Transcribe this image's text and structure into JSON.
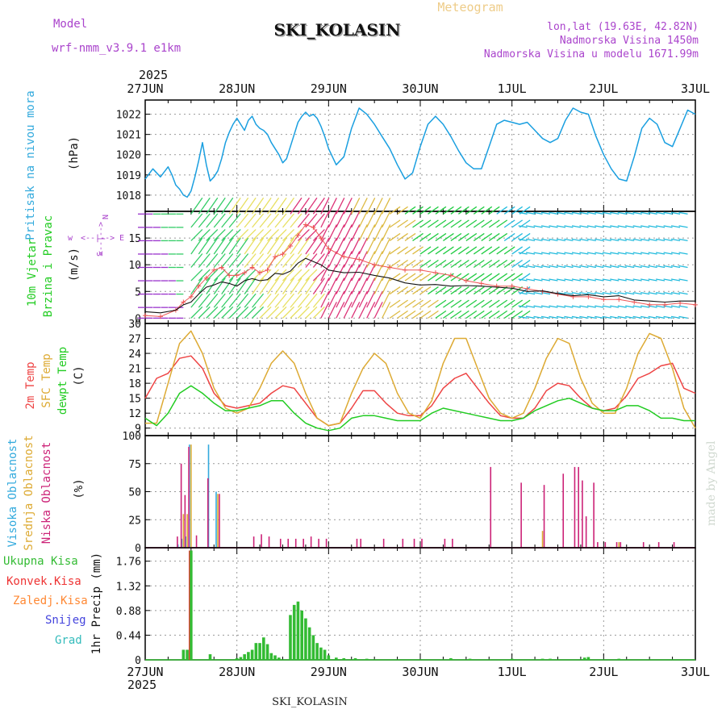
{
  "header": {
    "model_label": "Model",
    "model_name": "wrf-nmm_v3.9.1 e1km",
    "station": "SKI_KOLASIN",
    "meteogram": "Meteogram",
    "lonlat": "lon,lat (19.63E, 42.82N)",
    "elevation": "Nadmorska Visina 1450m",
    "model_elevation": "Nadmorska Visina u modelu 1671.99m",
    "year": "2025",
    "footer_station": "SKI_KOLASIN",
    "credit": "made by Angel"
  },
  "time_axis": {
    "ticks": [
      "27JUN",
      "28JUN",
      "29JUN",
      "30JUN",
      "1JUL",
      "2JUL",
      "3JUL"
    ],
    "range_hours": [
      0,
      144
    ]
  },
  "colors": {
    "pressure": "#1a9fe0",
    "t2m": "#ee4444",
    "sfc": "#ddaa33",
    "dewpt": "#22cc22",
    "high_cloud": "#33aadd",
    "mid_cloud": "#ddaa33",
    "low_cloud": "#cc2277",
    "total_precip": "#33bb33",
    "conv_precip": "#ee3333",
    "freezing": "#ff8833",
    "snow": "#4444dd",
    "hail": "#33bbbb",
    "wind_label": "#22cc22",
    "wind_dir_label": "#aa44cc"
  },
  "chart_data": [
    {
      "type": "line",
      "name": "pressure",
      "ylabel_lines": [
        "Pritisak na nivou mora",
        "(hPa)"
      ],
      "ylim": [
        1017.2,
        1022.7
      ],
      "yticks": [
        1018,
        1019,
        1020,
        1021,
        1022
      ],
      "x": [
        0,
        2,
        4,
        6,
        7,
        8,
        9,
        10,
        11,
        12,
        13,
        14,
        15,
        16,
        17,
        18,
        19,
        20,
        21,
        22,
        23,
        24,
        25,
        26,
        27,
        28,
        29,
        30,
        31,
        32,
        33,
        34,
        35,
        36,
        37,
        38,
        39,
        40,
        41,
        42,
        43,
        44,
        45,
        46,
        47,
        48,
        50,
        52,
        54,
        56,
        58,
        60,
        62,
        64,
        66,
        68,
        70,
        72,
        74,
        76,
        78,
        80,
        82,
        84,
        86,
        88,
        90,
        92,
        94,
        96,
        98,
        100,
        102,
        104,
        106,
        108,
        110,
        112,
        114,
        116,
        118,
        120,
        122,
        124,
        126,
        128,
        130,
        132,
        134,
        136,
        138,
        140,
        142,
        144
      ],
      "values": [
        1018.8,
        1019.3,
        1018.9,
        1019.4,
        1019.0,
        1018.5,
        1018.3,
        1018.0,
        1017.9,
        1018.2,
        1018.9,
        1019.7,
        1020.6,
        1019.5,
        1018.7,
        1018.9,
        1019.2,
        1019.8,
        1020.6,
        1021.1,
        1021.5,
        1021.8,
        1021.5,
        1021.2,
        1021.7,
        1021.9,
        1021.5,
        1021.3,
        1021.2,
        1021.0,
        1020.6,
        1020.3,
        1020.0,
        1019.6,
        1019.8,
        1020.4,
        1021.0,
        1021.6,
        1021.9,
        1022.1,
        1021.9,
        1022.0,
        1021.8,
        1021.4,
        1020.9,
        1020.3,
        1019.5,
        1019.9,
        1021.3,
        1022.3,
        1022.0,
        1021.5,
        1020.9,
        1020.3,
        1019.5,
        1018.8,
        1019.1,
        1020.4,
        1021.5,
        1021.9,
        1021.5,
        1020.9,
        1020.2,
        1019.6,
        1019.3,
        1019.3,
        1020.4,
        1021.5,
        1021.7,
        1021.6,
        1021.5,
        1021.6,
        1021.2,
        1020.8,
        1020.6,
        1020.8,
        1021.7,
        1022.3,
        1022.1,
        1022.0,
        1020.9,
        1020.0,
        1019.3,
        1018.8,
        1018.7,
        1019.9,
        1021.3,
        1021.8,
        1021.5,
        1020.6,
        1020.4,
        1021.3,
        1022.2,
        1022.0
      ]
    },
    {
      "type": "line",
      "name": "wind",
      "ylabel_lines": [
        "10m Vjetar",
        "Brzina i Pravac",
        "(m/s)"
      ],
      "direction_legend": [
        "w",
        "<--|-->",
        "E",
        "N",
        "S"
      ],
      "ylim": [
        -1,
        20
      ],
      "yticks": [
        0,
        5,
        10,
        15
      ],
      "x": [
        0,
        4,
        8,
        10,
        12,
        14,
        16,
        18,
        20,
        22,
        24,
        26,
        28,
        30,
        32,
        34,
        36,
        38,
        40,
        42,
        44,
        46,
        48,
        52,
        56,
        60,
        64,
        68,
        72,
        76,
        80,
        84,
        88,
        92,
        96,
        100,
        104,
        108,
        112,
        116,
        120,
        124,
        128,
        132,
        136,
        140,
        144
      ],
      "speed": [
        1.2,
        1.0,
        1.5,
        2.5,
        3.0,
        4.5,
        5.8,
        6.2,
        6.8,
        6.5,
        6.0,
        7.0,
        7.4,
        7.0,
        7.2,
        8.4,
        8.2,
        8.8,
        10.3,
        11.2,
        10.6,
        10.0,
        9.0,
        8.5,
        8.6,
        8.0,
        7.5,
        6.6,
        6.2,
        6.3,
        6.0,
        6.1,
        6.0,
        5.8,
        5.6,
        5.0,
        5.1,
        4.6,
        4.2,
        4.4,
        4.0,
        4.2,
        3.4,
        3.2,
        3.0,
        3.2,
        3.2
      ],
      "gust": [
        0.5,
        0.3,
        1.5,
        3.0,
        4.0,
        6.0,
        7.5,
        9.0,
        9.5,
        8.0,
        8.0,
        8.5,
        9.5,
        8.5,
        9.0,
        11.5,
        12.0,
        13.5,
        15.5,
        17.5,
        17.0,
        15.0,
        13.0,
        11.5,
        11.0,
        10.0,
        9.5,
        9.0,
        9.0,
        8.5,
        8.0,
        7.0,
        6.5,
        6.0,
        6.0,
        5.5,
        5.0,
        4.5,
        4.0,
        4.0,
        3.5,
        3.5,
        3.0,
        2.5,
        2.5,
        2.8,
        2.5
      ]
    },
    {
      "type": "line",
      "name": "temperature",
      "ylabel_lines": [
        "2m Temp",
        "SFC Temp",
        "dewpt Temp",
        "(C)"
      ],
      "ylim": [
        7.5,
        30
      ],
      "yticks": [
        9,
        12,
        15,
        18,
        21,
        24,
        27,
        30
      ],
      "x": [
        0,
        3,
        6,
        9,
        12,
        15,
        18,
        21,
        24,
        27,
        30,
        33,
        36,
        39,
        42,
        45,
        48,
        51,
        54,
        57,
        60,
        63,
        66,
        69,
        72,
        75,
        78,
        81,
        84,
        87,
        90,
        93,
        96,
        99,
        102,
        105,
        108,
        111,
        114,
        117,
        120,
        123,
        126,
        129,
        132,
        135,
        138,
        141,
        144
      ],
      "series": [
        {
          "name": "2m Temp",
          "color_key": "t2m",
          "values": [
            15,
            19,
            20,
            23,
            23.5,
            21,
            16,
            13.5,
            13,
            13.5,
            14,
            16,
            17.5,
            17,
            14,
            11,
            9.5,
            10,
            13,
            16.5,
            16.5,
            14,
            12,
            11.5,
            11.5,
            13.5,
            17,
            19,
            20,
            17,
            14,
            11.5,
            11,
            11,
            13,
            16.5,
            18,
            17.5,
            15,
            13,
            12.5,
            13,
            15.5,
            19,
            20,
            21.5,
            22,
            17,
            16
          ]
        },
        {
          "name": "SFC Temp",
          "color_key": "sfc",
          "values": [
            10,
            10,
            18,
            26,
            28.5,
            24,
            17,
            13,
            12,
            13,
            17,
            22,
            24.5,
            22,
            16,
            11,
            9.5,
            10,
            16,
            21,
            24,
            22,
            16,
            12,
            11,
            14.5,
            22,
            27,
            27,
            21,
            15,
            12,
            11,
            12,
            17,
            23,
            27,
            26,
            19,
            14,
            12,
            12,
            17,
            24,
            28,
            27,
            21,
            13,
            9
          ]
        },
        {
          "name": "dewpt Temp",
          "color_key": "dewpt",
          "values": [
            11,
            9.5,
            12,
            16,
            17.5,
            16,
            14,
            12.5,
            12.5,
            13,
            13.5,
            14.5,
            14.5,
            12,
            10,
            9,
            8.5,
            9,
            11,
            11.5,
            11.5,
            11,
            10.5,
            10.5,
            10.5,
            12,
            13,
            12.5,
            12,
            11.5,
            11,
            10.5,
            10.5,
            11,
            12.5,
            13.5,
            14.5,
            15,
            14,
            13,
            12.5,
            12.5,
            13.5,
            13.5,
            12.5,
            11,
            11,
            10.5,
            10.5
          ]
        }
      ]
    },
    {
      "type": "bar",
      "name": "cloud",
      "ylabel_lines": [
        "Visoka Oblacnost",
        "Srednja Oblacnost",
        "Niska Oblacnost",
        "(%)"
      ],
      "ylim": [
        0,
        100
      ],
      "yticks": [
        0,
        25,
        50,
        75,
        100
      ],
      "series": [
        {
          "name": "Visoka Oblacnost",
          "color_key": "high_cloud",
          "x": [
            9,
            10,
            11,
            12,
            17,
            19
          ],
          "values": [
            3,
            8,
            10,
            92,
            92,
            50
          ]
        },
        {
          "name": "Srednja Oblacnost",
          "color_key": "mid_cloud",
          "x": [
            10,
            11,
            12,
            19,
            104,
            124
          ],
          "values": [
            30,
            30,
            92,
            48,
            15,
            5
          ]
        },
        {
          "name": "Niska Oblacnost",
          "color_key": "low_cloud",
          "x": [
            8,
            9,
            10,
            11,
            13,
            16,
            19,
            28,
            30,
            32,
            35,
            37,
            39,
            41,
            43,
            45,
            47,
            55,
            56,
            62,
            67,
            70,
            72,
            78,
            80,
            90,
            98,
            104,
            109,
            112,
            113,
            114,
            115,
            117,
            118,
            120,
            123,
            124,
            130,
            134,
            138
          ],
          "values": [
            10,
            75,
            47,
            90,
            11,
            62,
            48,
            10,
            12,
            10,
            8,
            8,
            8,
            8,
            10,
            8,
            8,
            8,
            8,
            8,
            8,
            8,
            8,
            8,
            8,
            72,
            58,
            56,
            66,
            72,
            72,
            60,
            28,
            58,
            5,
            5,
            5,
            5,
            5,
            5,
            5
          ]
        }
      ]
    },
    {
      "type": "bar",
      "name": "precip",
      "ylabel_lines": [
        "1hr Precip (mm)"
      ],
      "legend": [
        "Ukupna Kisa",
        "Konvek.Kisa",
        "Zaledj.Kisa",
        "Snijeg",
        "Grad"
      ],
      "ylim": [
        0,
        2.0
      ],
      "yticks": [
        0,
        0.44,
        0.88,
        1.32,
        1.76
      ],
      "ytick_labels": [
        "0",
        "0.44",
        "0.88",
        "1.32",
        "1.76"
      ],
      "x": [
        10,
        11,
        12,
        17,
        24,
        25,
        26,
        27,
        28,
        29,
        30,
        31,
        32,
        33,
        34,
        35,
        38,
        39,
        40,
        41,
        42,
        43,
        44,
        45,
        46,
        47,
        48,
        50,
        52,
        55,
        58,
        80,
        85,
        96,
        104,
        106,
        115,
        116,
        124
      ],
      "values": [
        0.18,
        0.18,
        1.95,
        0.1,
        0.03,
        0.05,
        0.1,
        0.14,
        0.18,
        0.3,
        0.3,
        0.4,
        0.28,
        0.12,
        0.08,
        0.04,
        0.8,
        0.98,
        1.04,
        0.88,
        0.74,
        0.58,
        0.44,
        0.3,
        0.22,
        0.18,
        0.08,
        0.04,
        0.03,
        0.03,
        0.02,
        0.03,
        0.02,
        0.02,
        0.02,
        0.02,
        0.04,
        0.05,
        0.02
      ],
      "conv_x": [
        12
      ],
      "conv_values": [
        1.95
      ]
    }
  ]
}
